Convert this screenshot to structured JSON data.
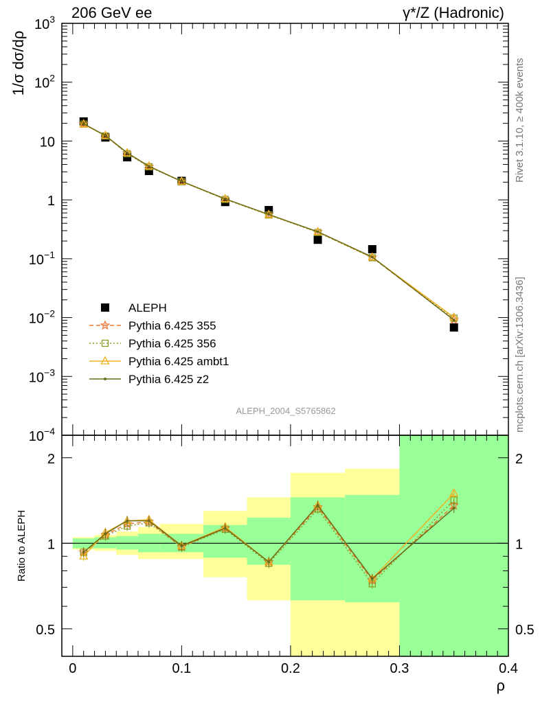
{
  "header": {
    "left": "206 GeV ee",
    "right": "γ*/Z (Hadronic)"
  },
  "side_labels": {
    "rivet": "Rivet 3.1.10, ≥ 400k events",
    "mcplots": "mcplots.cern.ch [arXiv:1306.3436]"
  },
  "watermark": "ALEPH_2004_S5765862",
  "colors": {
    "data": "#000000",
    "p355": "#ee7733",
    "p356": "#8a9a20",
    "ambt1": "#f0b020",
    "z2": "#6b6b18",
    "band_inner": "#99ff99",
    "band_outer": "#ffff99"
  },
  "chart_data": [
    {
      "type": "scatter",
      "title": "",
      "xlabel": "ρ",
      "ylabel": "1/σ dσ/dρ",
      "xlim": [
        -0.01,
        0.4
      ],
      "ylim": [
        0.0001,
        1000
      ],
      "log_y": true,
      "legend_position": "bottom-left",
      "x_ticks": [
        0,
        0.1,
        0.2,
        0.3,
        0.4
      ],
      "y_tick_labels": [
        {
          "value": 1000,
          "base": "10",
          "exp": "3"
        },
        {
          "value": 100,
          "base": "10",
          "exp": "2"
        },
        {
          "value": 10,
          "base": "10",
          "exp": ""
        },
        {
          "value": 1,
          "base": "1",
          "exp": ""
        },
        {
          "value": 0.1,
          "base": "10",
          "exp": "−1"
        },
        {
          "value": 0.01,
          "base": "10",
          "exp": "−2"
        },
        {
          "value": 0.001,
          "base": "10",
          "exp": "−3"
        },
        {
          "value": 0.0001,
          "base": "10",
          "exp": "−4"
        }
      ],
      "x": [
        0.01,
        0.03,
        0.05,
        0.07,
        0.1,
        0.14,
        0.18,
        0.225,
        0.275,
        0.35
      ],
      "series": [
        {
          "name": "ALEPH",
          "key": "data",
          "style": "marker",
          "values": [
            21.5,
            11.5,
            5.3,
            3.1,
            2.1,
            0.92,
            0.67,
            0.21,
            0.145,
            0.0068
          ]
        },
        {
          "name": "Pythia 6.425 355",
          "key": "p355",
          "style": "dashed-star",
          "values": [
            19.5,
            12.3,
            6.2,
            3.7,
            2.05,
            1.03,
            0.56,
            0.285,
            0.105,
            0.0092
          ]
        },
        {
          "name": "Pythia 6.425 356",
          "key": "p356",
          "style": "dotted-square",
          "values": [
            19.4,
            12.2,
            6.1,
            3.65,
            2.04,
            1.02,
            0.555,
            0.28,
            0.104,
            0.0098
          ]
        },
        {
          "name": "Pythia 6.425 ambt1",
          "key": "ambt1",
          "style": "solid-triangle",
          "values": [
            19.3,
            12.4,
            6.3,
            3.75,
            2.06,
            1.04,
            0.56,
            0.287,
            0.106,
            0.0101
          ]
        },
        {
          "name": "Pythia 6.425 z2",
          "key": "z2",
          "style": "solid-dot",
          "values": [
            19.6,
            12.4,
            6.3,
            3.72,
            2.07,
            1.04,
            0.565,
            0.287,
            0.107,
            0.0091
          ]
        }
      ]
    },
    {
      "type": "line",
      "title": "",
      "xlabel": "ρ",
      "ylabel": "Ratio to ALEPH",
      "xlim": [
        -0.01,
        0.4
      ],
      "ylim": [
        0.4,
        2.4
      ],
      "log_y": true,
      "x_ticks": [
        0,
        0.1,
        0.2,
        0.3,
        0.4
      ],
      "y_ticks": [
        0.5,
        1,
        2
      ],
      "y_tick_labels": [
        "0.5",
        "1",
        "2"
      ],
      "bin_edges": [
        0,
        0.02,
        0.04,
        0.06,
        0.08,
        0.12,
        0.16,
        0.2,
        0.25,
        0.3,
        0.4
      ],
      "band_inner": [
        [
          0.96,
          1.04
        ],
        [
          0.96,
          1.05
        ],
        [
          0.95,
          1.06
        ],
        [
          0.93,
          1.08
        ],
        [
          0.93,
          1.08
        ],
        [
          0.89,
          1.16
        ],
        [
          0.84,
          1.23
        ],
        [
          0.63,
          1.45
        ],
        [
          0.62,
          1.48
        ],
        [
          0.36,
          2.7
        ]
      ],
      "band_outer": [
        [
          0.95,
          1.05
        ],
        [
          0.94,
          1.07
        ],
        [
          0.91,
          1.1
        ],
        [
          0.88,
          1.14
        ],
        [
          0.88,
          1.17
        ],
        [
          0.76,
          1.3
        ],
        [
          0.63,
          1.45
        ],
        [
          0.36,
          1.77
        ],
        [
          0.36,
          1.83
        ],
        [
          0.36,
          2.7
        ]
      ],
      "x": [
        0.01,
        0.03,
        0.05,
        0.07,
        0.1,
        0.14,
        0.18,
        0.225,
        0.275,
        0.35
      ],
      "series": [
        {
          "name": "Pythia 6.425 355",
          "key": "p355",
          "values": [
            0.93,
            1.07,
            1.17,
            1.19,
            0.97,
            1.13,
            0.86,
            1.34,
            0.74,
            1.36
          ]
        },
        {
          "name": "Pythia 6.425 356",
          "key": "p356",
          "values": [
            0.93,
            1.06,
            1.15,
            1.18,
            0.97,
            1.12,
            0.85,
            1.32,
            0.72,
            1.42
          ]
        },
        {
          "name": "Pythia 6.425 ambt1",
          "key": "ambt1",
          "values": [
            0.9,
            1.09,
            1.2,
            1.21,
            0.98,
            1.14,
            0.86,
            1.36,
            0.75,
            1.5
          ]
        },
        {
          "name": "Pythia 6.425 z2",
          "key": "z2",
          "values": [
            0.93,
            1.08,
            1.2,
            1.2,
            0.98,
            1.13,
            0.86,
            1.36,
            0.75,
            1.33
          ]
        }
      ]
    }
  ]
}
